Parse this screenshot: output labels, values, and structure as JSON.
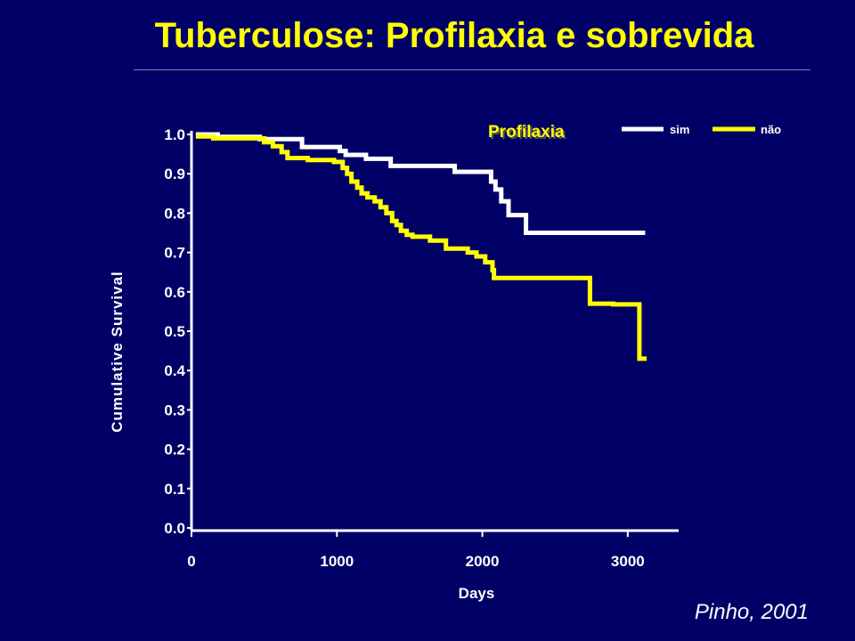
{
  "slide": {
    "title": "Tuberculose: Profilaxia e sobrevida",
    "citation": "Pinho, 2001"
  },
  "colors": {
    "background": "#000066",
    "title": "#ffff00",
    "text": "#ffffff",
    "series_sim": "#ffffff",
    "series_nao": "#ffff00"
  },
  "chart_data": {
    "type": "line",
    "step": true,
    "xlabel": "Days",
    "ylabel": "Cumulative Survival",
    "xlim": [
      0,
      3350
    ],
    "ylim": [
      0,
      1.0
    ],
    "xticks": [
      0,
      1000,
      2000,
      3000
    ],
    "xtick_labels": [
      "0",
      "1000",
      "2000",
      "3000"
    ],
    "yticks": [
      0,
      0.1,
      0.2,
      0.3,
      0.4,
      0.5,
      0.6,
      0.7,
      0.8,
      0.9,
      1.0
    ],
    "ytick_labels": [
      "0.0",
      "0.1",
      "0.2",
      "0.3",
      "0.4",
      "0.5",
      "0.6",
      "0.7",
      "0.8",
      "0.9",
      "1.0"
    ],
    "grid": false,
    "legend": {
      "title": "Profilaxia",
      "position": "top-right",
      "entries": [
        "sim",
        "não"
      ]
    },
    "series": [
      {
        "name": "sim",
        "color": "#ffffff",
        "x": [
          30,
          180,
          470,
          760,
          1020,
          1060,
          1200,
          1370,
          1810,
          2060,
          2090,
          2130,
          2180,
          2250,
          2300,
          3120
        ],
        "y": [
          1.0,
          0.994,
          0.988,
          0.968,
          0.958,
          0.948,
          0.938,
          0.92,
          0.905,
          0.88,
          0.86,
          0.83,
          0.795,
          0.795,
          0.75,
          0.75
        ]
      },
      {
        "name": "não",
        "color": "#ffff00",
        "x": [
          30,
          150,
          500,
          560,
          620,
          660,
          800,
          980,
          1040,
          1070,
          1100,
          1140,
          1170,
          1210,
          1260,
          1300,
          1340,
          1380,
          1410,
          1440,
          1480,
          1520,
          1640,
          1750,
          1900,
          1960,
          2020,
          2070,
          2080,
          2600,
          2740,
          2900,
          3060,
          3080,
          3130
        ],
        "y": [
          0.995,
          0.99,
          0.98,
          0.97,
          0.955,
          0.94,
          0.935,
          0.93,
          0.915,
          0.9,
          0.88,
          0.865,
          0.85,
          0.84,
          0.83,
          0.815,
          0.8,
          0.78,
          0.77,
          0.755,
          0.745,
          0.74,
          0.73,
          0.71,
          0.7,
          0.69,
          0.675,
          0.655,
          0.635,
          0.635,
          0.57,
          0.568,
          0.568,
          0.43,
          0.43
        ]
      }
    ]
  }
}
